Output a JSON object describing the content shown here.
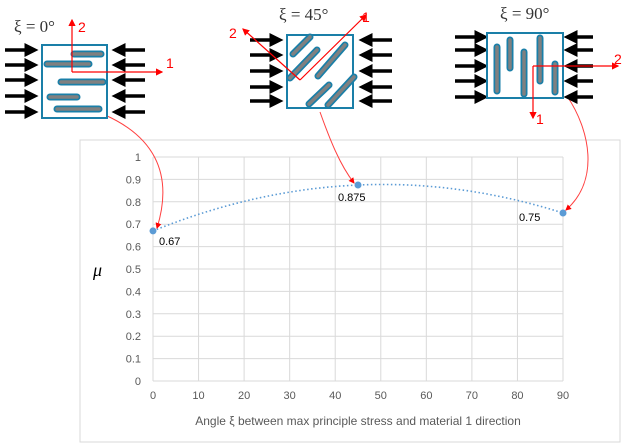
{
  "diagrams": [
    {
      "title": "ξ = 0°",
      "axis1_label": "1",
      "axis2_label": "2"
    },
    {
      "title": "ξ = 45°",
      "axis1_label": "1",
      "axis2_label": "2"
    },
    {
      "title": "ξ = 90°",
      "axis1_label": "1",
      "axis2_label": "2"
    }
  ],
  "colors": {
    "fiber_fill": "#808080",
    "fiber_edge": "#1a7fa8",
    "box": "#1a7fa8",
    "axes": "#ff0000",
    "point": "#5b9bd5",
    "grid": "#d9d9d9"
  },
  "chart_data": {
    "type": "scatter",
    "trendline": "dotted polynomial fit",
    "xlabel": "Angle ξ between max principle stress and material 1 direction",
    "ylabel": "μ",
    "xlim": [
      0,
      90
    ],
    "ylim": [
      0,
      1
    ],
    "xticks": [
      "0",
      "10",
      "20",
      "30",
      "40",
      "50",
      "60",
      "70",
      "80",
      "90"
    ],
    "yticks": [
      "0",
      "0.1",
      "0.2",
      "0.3",
      "0.4",
      "0.5",
      "0.6",
      "0.7",
      "0.8",
      "0.9",
      "1"
    ],
    "grid": true,
    "points": [
      {
        "x": 0,
        "y": 0.67,
        "label": "0.67"
      },
      {
        "x": 45,
        "y": 0.875,
        "label": "0.875"
      },
      {
        "x": 90,
        "y": 0.75,
        "label": "0.75"
      }
    ]
  }
}
